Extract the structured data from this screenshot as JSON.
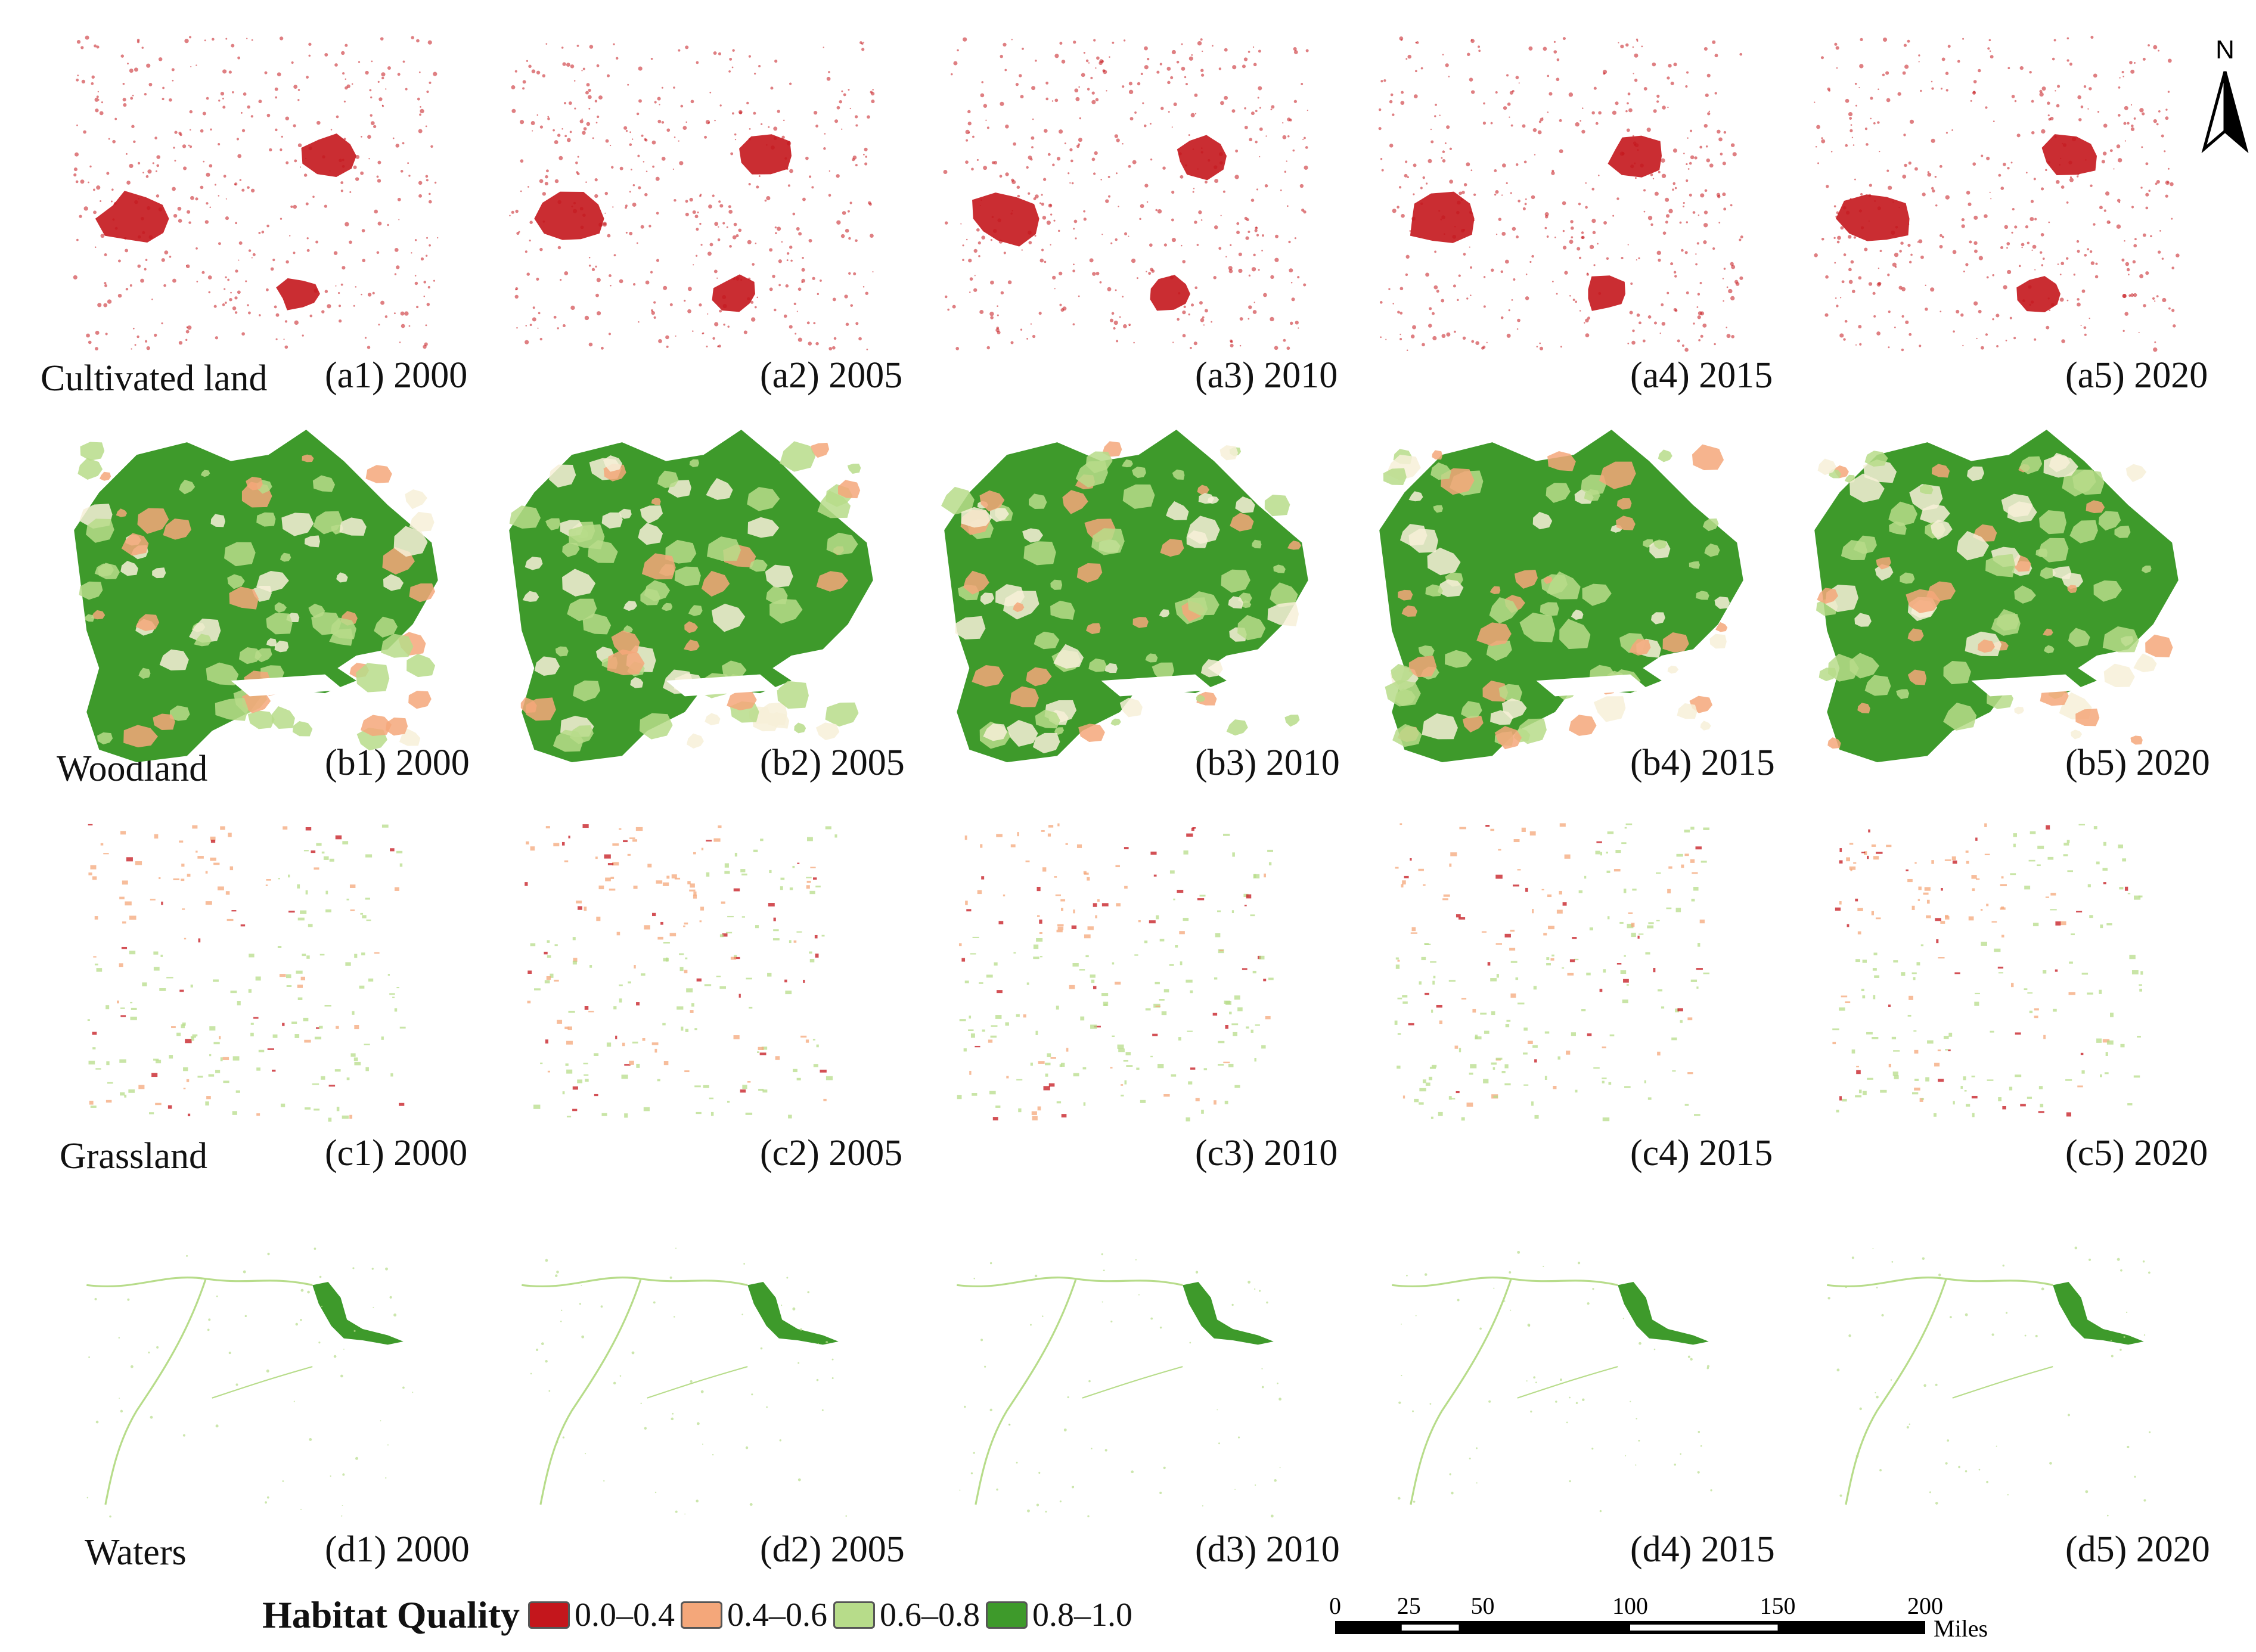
{
  "rows": [
    {
      "label": "Cultivated land",
      "type": "cultivated",
      "panels": [
        {
          "tag": "(a1) 2000"
        },
        {
          "tag": "(a2) 2005"
        },
        {
          "tag": "(a3) 2010"
        },
        {
          "tag": "(a4) 2015"
        },
        {
          "tag": "(a5) 2020"
        }
      ]
    },
    {
      "label": "Woodland",
      "type": "woodland",
      "panels": [
        {
          "tag": "(b1) 2000"
        },
        {
          "tag": "(b2) 2005"
        },
        {
          "tag": "(b3) 2010"
        },
        {
          "tag": "(b4) 2015"
        },
        {
          "tag": "(b5) 2020"
        }
      ]
    },
    {
      "label": "Grassland",
      "type": "grassland",
      "panels": [
        {
          "tag": "(c1) 2000"
        },
        {
          "tag": "(c2) 2005"
        },
        {
          "tag": "(c3) 2010"
        },
        {
          "tag": "(c4) 2015"
        },
        {
          "tag": "(c5) 2020"
        }
      ]
    },
    {
      "label": "Waters",
      "type": "waters",
      "panels": [
        {
          "tag": "(d1) 2000"
        },
        {
          "tag": "(d2) 2005"
        },
        {
          "tag": "(d3) 2010"
        },
        {
          "tag": "(d4) 2015"
        },
        {
          "tag": "(d5) 2020"
        }
      ]
    }
  ],
  "legend": {
    "title": "Habitat Quality",
    "items": [
      {
        "label": "0.0–0.4",
        "color": "#c4161c"
      },
      {
        "label": "0.4–0.6",
        "color": "#f4a77a"
      },
      {
        "label": "0.6–0.8",
        "color": "#b7dc8a"
      },
      {
        "label": "0.8–1.0",
        "color": "#3e9a2b"
      }
    ]
  },
  "north_arrow": {
    "label": "N"
  },
  "scale_bar": {
    "ticks": [
      "0",
      "25",
      "50",
      "100",
      "150",
      "200"
    ],
    "unit": "Miles"
  }
}
